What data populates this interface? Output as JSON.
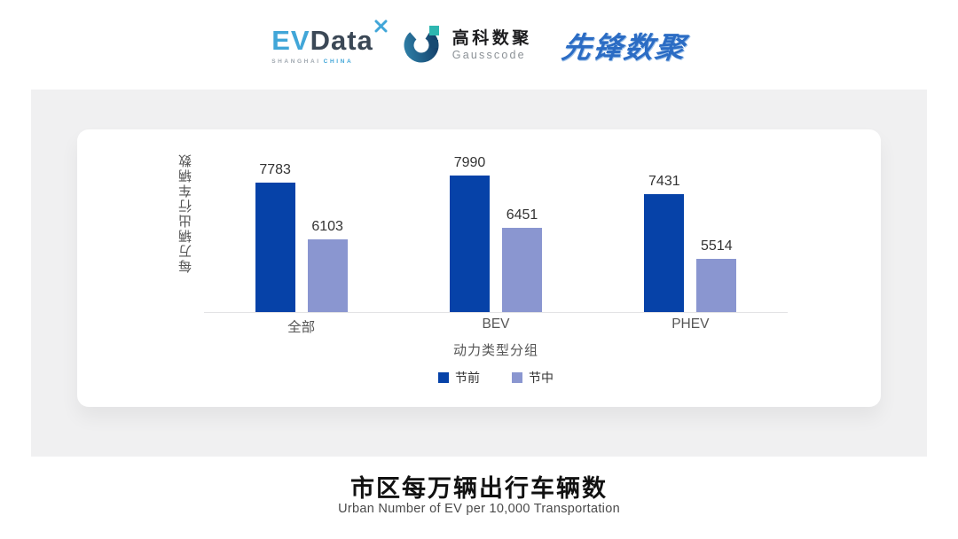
{
  "header": {
    "logos": {
      "evdata": {
        "part_ev": "EV",
        "part_data": "Data",
        "sub_left": "SHANGHAI",
        "sub_right": "CHINA"
      },
      "gausscode": {
        "name_cn": "高科数聚",
        "name_en": "Gausscode"
      },
      "pioneer": {
        "name": "先锋数聚"
      }
    }
  },
  "chart_data": {
    "type": "bar",
    "categories": [
      "全部",
      "BEV",
      "PHEV"
    ],
    "series": [
      {
        "name": "节前",
        "color": "#0642a8",
        "values": [
          7783,
          7990,
          7431
        ]
      },
      {
        "name": "节中",
        "color": "#8a96d0",
        "values": [
          6103,
          6451,
          5514
        ]
      }
    ],
    "ylabel": "每万辆出行车辆数",
    "xlabel": "动力类型分组",
    "ylim": [
      3950,
      9500
    ],
    "grid": false,
    "legend_position": "bottom",
    "value_labels": true
  },
  "footer": {
    "title": "市区每万辆出行车辆数",
    "subtitle": "Urban Number of EV per 10,000 Transportation"
  },
  "colors": {
    "panel_bg": "#f0f0f1",
    "card_bg": "#ffffff",
    "evdata_blue": "#41a6d8",
    "evdata_dark": "#3b4856",
    "gauss_teal": "#2eb6b0",
    "gauss_navy": "#174a72",
    "pioneer_blue": "#2b6cc4"
  }
}
